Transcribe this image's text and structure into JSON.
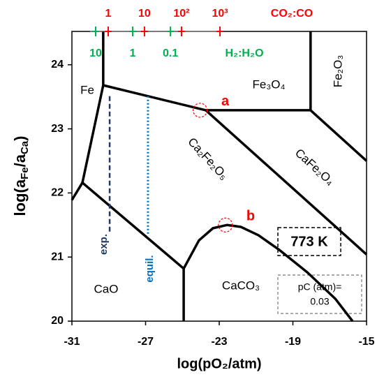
{
  "chart_data": {
    "type": "phase-diagram",
    "x_label": "log(pO₂/atm)",
    "y_label_parts": [
      "log(a",
      "Fe",
      "/a",
      "Ca",
      ")"
    ],
    "xlim": [
      -31,
      -15
    ],
    "ylim": [
      20,
      24.52
    ],
    "xticks": [
      -31,
      -27,
      -23,
      -19,
      -15
    ],
    "yticks": [
      20,
      21,
      22,
      23,
      24
    ],
    "boundary_color": "#000000",
    "boundaries": [
      {
        "x": [
          -29.3,
          -29.3
        ],
        "y": [
          24.52,
          23.68
        ]
      },
      {
        "x": [
          -29.3,
          -23.73
        ],
        "y": [
          23.68,
          23.29
        ]
      },
      {
        "x": [
          -23.73,
          -18.04,
          -15
        ],
        "y": [
          23.29,
          23.29,
          22.5
        ]
      },
      {
        "x": [
          -18.04,
          -18.04
        ],
        "y": [
          24.52,
          23.29
        ]
      },
      {
        "x": [
          -23.73,
          -15
        ],
        "y": [
          23.29,
          21.04
        ]
      },
      {
        "x": [
          -29.3,
          -30.43,
          -31
        ],
        "y": [
          23.68,
          22.16,
          21.89
        ]
      },
      {
        "x": [
          -30.43,
          -24.93,
          -24.93
        ],
        "y": [
          22.16,
          20.82,
          20
        ]
      },
      {
        "x": [
          -24.93,
          -24.1,
          -23.34,
          -22.58,
          -21.82,
          -20.87,
          -19.73,
          -18.21,
          -16.7,
          -15.76
        ],
        "y": [
          20.82,
          21.26,
          21.45,
          21.5,
          21.47,
          21.34,
          21.11,
          20.76,
          20.35,
          20
        ]
      }
    ],
    "exp_line": {
      "label": "exp.",
      "color": "#1f3864",
      "x": [
        -28.95,
        -28.95
      ],
      "y": [
        23.51,
        21.36
      ]
    },
    "equil_line": {
      "label": "equil.",
      "color": "#0070c0",
      "x": [
        -26.87,
        -26.87
      ],
      "y": [
        23.51,
        21.36
      ]
    },
    "points": [
      {
        "label": "a",
        "x": -24.04,
        "y": 23.29
      },
      {
        "label": "b",
        "x": -22.66,
        "y": 21.5
      }
    ],
    "point_color": "#ff0000",
    "phases": [
      "Fe",
      "Fe₃O₄",
      "Fe₂O₃",
      "Ca₂Fe₂O₅",
      "CaFe₂O₄",
      "CaO",
      "CaCO₃"
    ],
    "temperature": "773 K",
    "pc_label": "pC (atm)=",
    "pc_value": "0.03",
    "co2_co": {
      "label": "CO₂:CO",
      "color": "#ff0000",
      "ticks": [
        {
          "value": -29.03,
          "label": "1"
        },
        {
          "value": -27.06,
          "label": "10"
        },
        {
          "value": -25.05,
          "label": "10²"
        },
        {
          "value": -22.96,
          "label": "10³"
        }
      ]
    },
    "h2_h2o": {
      "label": "H₂:H₂O",
      "color": "#00b050",
      "ticks": [
        {
          "value": -29.71,
          "label": "10"
        },
        {
          "value": -27.7,
          "label": "1"
        },
        {
          "value": -25.65,
          "label": "0.1"
        }
      ]
    }
  }
}
